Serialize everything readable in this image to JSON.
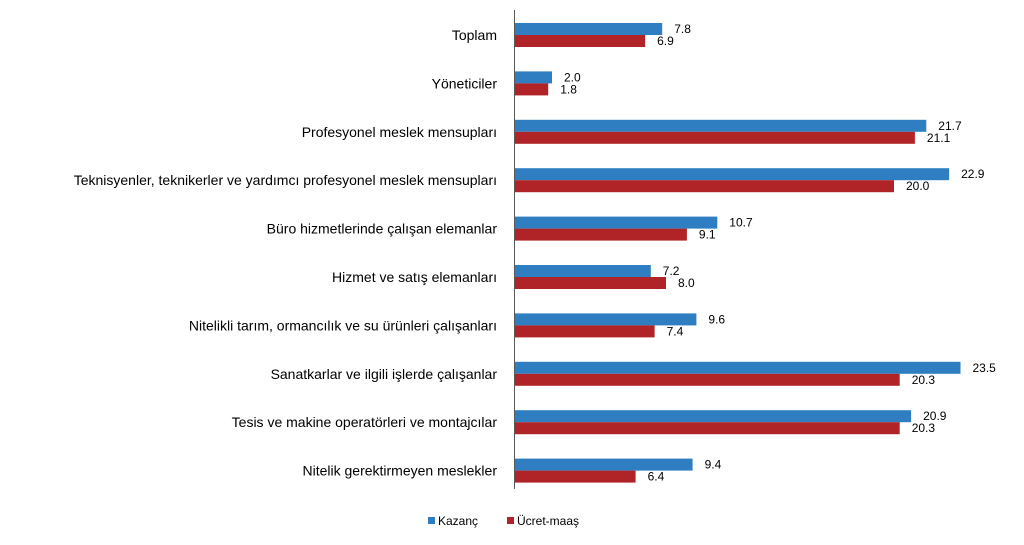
{
  "chart_data": {
    "type": "bar",
    "orientation": "horizontal",
    "categories": [
      "Toplam",
      "Yöneticiler",
      "Profesyonel meslek mensupları",
      "Teknisyenler, teknikerler ve yardımcı profesyonel meslek mensupları",
      "Büro hizmetlerinde çalışan elemanlar",
      "Hizmet ve satış elemanları",
      "Nitelikli tarım, ormancılık ve su ürünleri çalışanları",
      "Sanatkarlar ve ilgili işlerde çalışanlar",
      "Tesis ve makine operatörleri ve montajcılar",
      "Nitelik gerektirmeyen meslekler"
    ],
    "series": [
      {
        "name": "Kazanç",
        "color": "#2E7EC1",
        "values": [
          7.8,
          2.0,
          21.7,
          22.9,
          10.7,
          7.2,
          9.6,
          23.5,
          20.9,
          9.4
        ],
        "labels": [
          "7.8",
          "2.0",
          "21.7",
          "22.9",
          "10.7",
          "7.2",
          "9.6",
          "23.5",
          "20.9",
          "9.4"
        ]
      },
      {
        "name": "Ücret-maaş",
        "color": "#B02427",
        "values": [
          6.9,
          1.8,
          21.1,
          20.0,
          9.1,
          8.0,
          7.4,
          20.3,
          20.3,
          6.4
        ],
        "labels": [
          "6.9",
          "1.8",
          "21.1",
          "20.0",
          "9.1",
          "8.0",
          "7.4",
          "20.3",
          "20.3",
          "6.4"
        ]
      }
    ],
    "xlim": [
      0,
      25
    ],
    "grid": false,
    "legend_position": "bottom",
    "title": "",
    "xlabel": "",
    "ylabel": ""
  }
}
